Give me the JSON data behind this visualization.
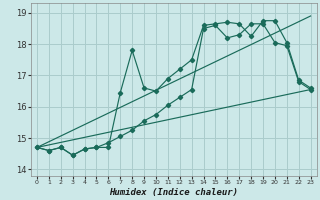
{
  "xlabel": "Humidex (Indice chaleur)",
  "background_color": "#cce8e8",
  "grid_color": "#aacccc",
  "line_color": "#1a6b5a",
  "xlim": [
    -0.5,
    23.5
  ],
  "ylim": [
    13.8,
    19.3
  ],
  "xticks": [
    0,
    1,
    2,
    3,
    4,
    5,
    6,
    7,
    8,
    9,
    10,
    11,
    12,
    13,
    14,
    15,
    16,
    17,
    18,
    19,
    20,
    21,
    22,
    23
  ],
  "yticks": [
    14,
    15,
    16,
    17,
    18,
    19
  ],
  "series1": [
    14.7,
    14.6,
    14.7,
    14.45,
    14.65,
    14.7,
    14.7,
    16.45,
    17.8,
    16.6,
    16.5,
    16.9,
    17.2,
    17.5,
    18.6,
    18.65,
    18.7,
    18.65,
    18.25,
    18.75,
    18.75,
    18.05,
    16.85,
    16.6
  ],
  "series2": [
    14.7,
    14.6,
    14.7,
    14.45,
    14.65,
    14.7,
    14.85,
    15.05,
    15.25,
    15.55,
    15.75,
    16.05,
    16.3,
    16.55,
    18.5,
    18.6,
    18.2,
    18.3,
    18.65,
    18.65,
    18.05,
    17.95,
    16.8,
    16.55
  ],
  "trend1_x": [
    0,
    23
  ],
  "trend1_y": [
    14.7,
    16.55
  ],
  "trend2_x": [
    0,
    23
  ],
  "trend2_y": [
    14.7,
    18.9
  ]
}
